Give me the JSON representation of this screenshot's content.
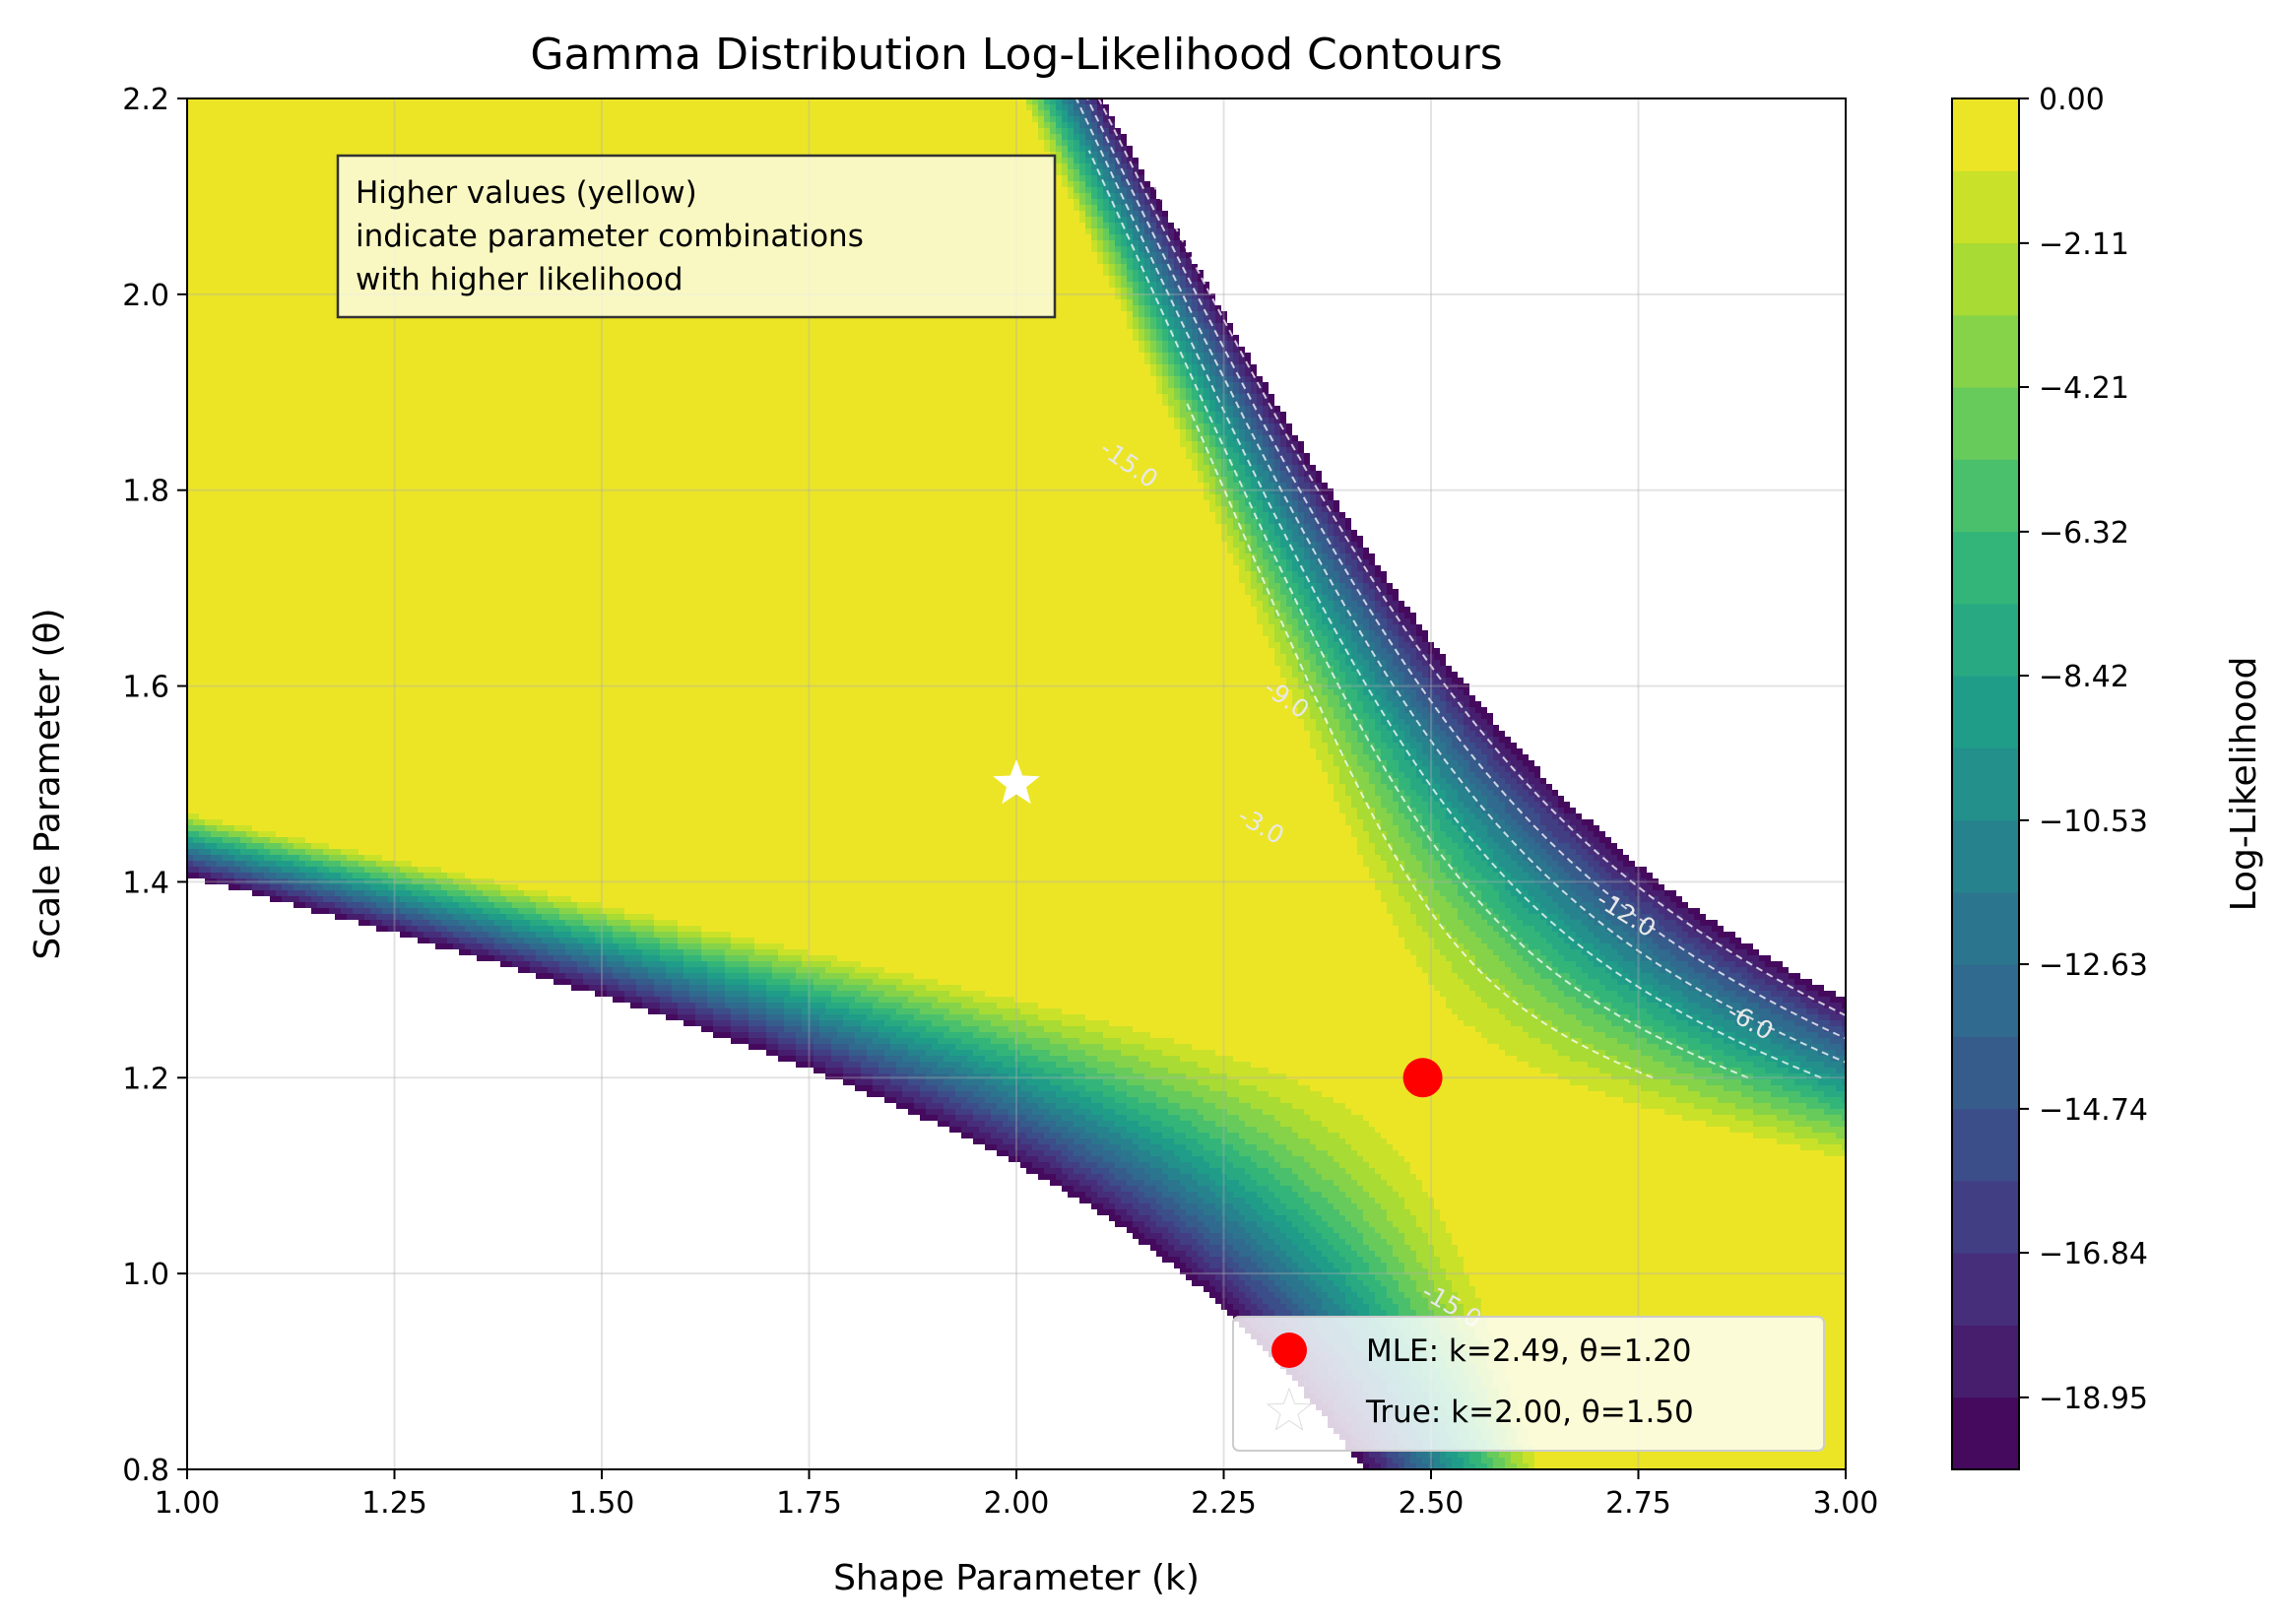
{
  "chart_data": {
    "type": "contour",
    "title": "Gamma Distribution Log-Likelihood Contours",
    "xlabel": "Shape Parameter (k)",
    "ylabel": "Scale Parameter (θ)",
    "xlim": [
      1.0,
      3.0
    ],
    "ylim": [
      0.8,
      2.2
    ],
    "x_ticks": [
      "1.00",
      "1.25",
      "1.50",
      "1.75",
      "2.00",
      "2.25",
      "2.50",
      "2.75",
      "3.00"
    ],
    "y_ticks": [
      "0.8",
      "1.0",
      "1.2",
      "1.4",
      "1.6",
      "1.8",
      "2.0",
      "2.2"
    ],
    "grid": true,
    "colormap": "viridis",
    "level_min": -20.0,
    "level_max": 0.0,
    "num_levels": 19,
    "mle": {
      "k": 2.49,
      "theta": 1.2
    },
    "true_params": {
      "k": 2.0,
      "theta": 1.5
    },
    "contour_line_labels": [
      "-15.0",
      "-9.0",
      "-3.0",
      "-12.0",
      "-6.0",
      "-15.0"
    ],
    "colorbar": {
      "label": "Log-Likelihood",
      "ticks": [
        "0.00",
        "−2.11",
        "−4.21",
        "−6.32",
        "−8.42",
        "−10.53",
        "−12.63",
        "−14.74",
        "−16.84",
        "−18.95"
      ]
    },
    "legend": {
      "placement": "lower-right",
      "entries": [
        {
          "label": "MLE: k=2.49, θ=1.20",
          "color": "#ff0000",
          "marker": "circle"
        },
        {
          "label": "True: k=2.00, θ=1.50",
          "color": "#ffffff",
          "marker": "star"
        }
      ]
    },
    "annotation": [
      "Higher values (yellow)",
      "indicate parameter combinations",
      "with higher likelihood"
    ]
  }
}
